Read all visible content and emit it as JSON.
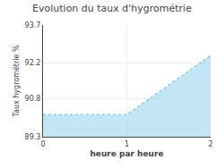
{
  "chart_data": {
    "type": "area",
    "title": "Evolution du taux d'hygrométrie",
    "x_label": "heure par heure",
    "y_label": "Taux hygrométrie %",
    "x": [
      0,
      1,
      2
    ],
    "values": [
      90.17,
      90.17,
      92.5
    ],
    "xlim": [
      0,
      2
    ],
    "xticks": [
      0,
      1,
      2
    ],
    "ylim": [
      89.3,
      93.7
    ],
    "yticks": [
      89.3,
      90.8,
      92.2,
      93.7
    ],
    "color": "#87ceeb",
    "line_style": "dotted",
    "grid": true
  }
}
